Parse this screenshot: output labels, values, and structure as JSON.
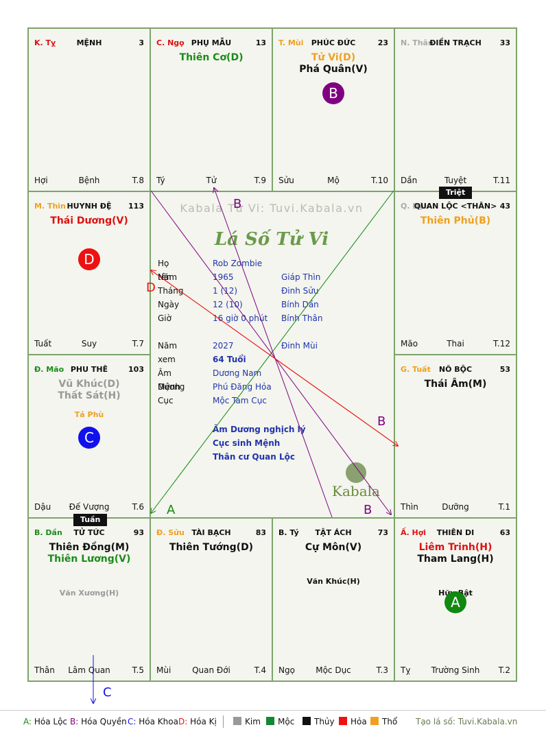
{
  "palaces": [
    {
      "id": "ty",
      "stem": "K. Tỵ",
      "stem_color": "#dd1111",
      "name": "MỆNH",
      "num": "3",
      "stars": [],
      "minor": [],
      "foot": [
        "Hợi",
        "Bệnh",
        "T.8"
      ]
    },
    {
      "id": "ngo",
      "stem": "C. Ngọ",
      "stem_color": "#dd1111",
      "name": "PHỤ MẪU",
      "num": "13",
      "stars": [
        {
          "text": "Thiên Cơ(D)",
          "color": "#1a8c1a"
        }
      ],
      "minor": [],
      "foot": [
        "Tý",
        "Tử",
        "T.9"
      ]
    },
    {
      "id": "mui",
      "stem": "T. Mùi",
      "stem_color": "#f0a020",
      "name": "PHÚC ĐỨC",
      "num": "23",
      "stars": [
        {
          "text": "Tử Vi(D)",
          "color": "#f0a020"
        },
        {
          "text": "Phá Quân(V)",
          "color": "#111111"
        }
      ],
      "minor": [],
      "foot": [
        "Sửu",
        "Mộ",
        "T.10"
      ]
    },
    {
      "id": "than",
      "stem": "N. Thân",
      "stem_color": "#aaaaaa",
      "name": "ĐIỀN TRẠCH",
      "num": "33",
      "stars": [],
      "minor": [],
      "foot": [
        "Dần",
        "Tuyệt",
        "T.11"
      ]
    },
    {
      "id": "thin",
      "stem": "M. Thìn",
      "stem_color": "#f0a020",
      "name": "HUYNH ĐỆ",
      "num": "113",
      "stars": [
        {
          "text": "Thái Dương(V)",
          "color": "#dd1111"
        }
      ],
      "minor": [],
      "foot": [
        "Tuất",
        "Suy",
        "T.7"
      ]
    },
    {
      "id": "dau",
      "stem": "Q. Dậu",
      "stem_color": "#aaaaaa",
      "name": "QUAN LỘC <THÂN>",
      "num": "43",
      "stars": [
        {
          "text": "Thiên Phủ(B)",
          "color": "#f0a020"
        }
      ],
      "minor": [],
      "foot": [
        "Mão",
        "Thai",
        "T.12"
      ]
    },
    {
      "id": "mao",
      "stem": "Đ. Mão",
      "stem_color": "#1a8c1a",
      "name": "PHU THÊ",
      "num": "103",
      "stars": [
        {
          "text": "Vũ Khúc(D)",
          "color": "#999999"
        },
        {
          "text": "Thất Sát(H)",
          "color": "#999999"
        }
      ],
      "minor": [
        {
          "text": "Tả Phù",
          "color": "#f0a020"
        }
      ],
      "foot": [
        "Dậu",
        "Đế Vượng",
        "T.6"
      ]
    },
    {
      "id": "tuat",
      "stem": "G. Tuất",
      "stem_color": "#f0a020",
      "name": "NÔ BỘC",
      "num": "53",
      "stars": [
        {
          "text": "Thái Âm(M)",
          "color": "#111111"
        }
      ],
      "minor": [],
      "foot": [
        "Thìn",
        "Dưỡng",
        "T.1"
      ]
    },
    {
      "id": "dan",
      "stem": "B. Dần",
      "stem_color": "#1a8c1a",
      "name": "TỬ TỨC",
      "num": "93",
      "stars": [
        {
          "text": "Thiên Đồng(M)",
          "color": "#111111"
        },
        {
          "text": "Thiên Lương(V)",
          "color": "#1a8c1a"
        }
      ],
      "minor": [
        {
          "text": "Văn Xương(H)",
          "color": "#999999"
        }
      ],
      "foot": [
        "Thân",
        "Lâm Quan",
        "T.5"
      ]
    },
    {
      "id": "suu",
      "stem": "Đ. Sửu",
      "stem_color": "#f0a020",
      "name": "TÀI BẠCH",
      "num": "83",
      "stars": [
        {
          "text": "Thiên Tướng(D)",
          "color": "#111111"
        }
      ],
      "minor": [],
      "foot": [
        "Mùi",
        "Quan Đới",
        "T.4"
      ]
    },
    {
      "id": "ty2",
      "stem": "B. Tý",
      "stem_color": "#111111",
      "name": "TẬT ÁCH",
      "num": "73",
      "stars": [
        {
          "text": "Cự Môn(V)",
          "color": "#111111"
        }
      ],
      "minor": [
        {
          "text": "Văn Khúc(H)",
          "color": "#111111"
        }
      ],
      "foot": [
        "Ngọ",
        "Mộc Dục",
        "T.3"
      ]
    },
    {
      "id": "hoi",
      "stem": "Ấ. Hợi",
      "stem_color": "#dd1111",
      "name": "THIÊN DI",
      "num": "63",
      "stars": [
        {
          "text": "Liêm Trinh(H)",
          "color": "#dd1111"
        },
        {
          "text": "Tham Lang(H)",
          "color": "#111111"
        }
      ],
      "minor": [
        {
          "text": "Hữu Bật",
          "color": "#111111"
        }
      ],
      "foot": [
        "Tỵ",
        "Trường Sinh",
        "T.2"
      ]
    }
  ],
  "badges": {
    "mui": {
      "letter": "B",
      "color": "#800080"
    },
    "thin": {
      "letter": "D",
      "color": "#ee1111"
    },
    "mao": {
      "letter": "C",
      "color": "#1111ee"
    },
    "hoi": {
      "letter": "A",
      "color": "#118811"
    }
  },
  "tags": {
    "triet": "Triệt",
    "tuan": "Tuần"
  },
  "center": {
    "brand": "Kabala Tử Vi: Tuvi.Kabala.vn",
    "title": "Lá Số Tử Vi",
    "info": [
      {
        "k": "Họ tên",
        "v1": "Rob Zombie",
        "v2": ""
      },
      {
        "k": "Năm",
        "v1": "1965",
        "v2": "Giáp Thìn"
      },
      {
        "k": "Tháng",
        "v1": "1  (12)",
        "v2": "Đinh Sửu"
      },
      {
        "k": "Ngày",
        "v1": "12  (10)",
        "v2": "Bính Dần"
      },
      {
        "k": "Giờ",
        "v1": "16 giờ 0 phút",
        "v2": "Bính Thân"
      },
      {
        "k": "",
        "v1": "",
        "v2": ""
      },
      {
        "k": "Năm xem",
        "v1": "2027",
        "v2": "Đinh Mùi"
      },
      {
        "k": "",
        "v1": "64 Tuổi",
        "v2": ""
      },
      {
        "k": "Âm Dương",
        "v1": "Dương Nam",
        "v2": ""
      },
      {
        "k": "Mệnh",
        "v1": "Phú Đăng Hỏa",
        "v2": ""
      },
      {
        "k": "Cục",
        "v1": "Mộc Tam Cục",
        "v2": ""
      }
    ],
    "notes": [
      "Âm Dương nghịch lý",
      "Cục sinh Mệnh",
      "Thân cư Quan Lộc"
    ],
    "logo": "Kabala"
  },
  "arrow_labels": {
    "a": "A",
    "b": "B",
    "c": "C",
    "d": "D"
  },
  "legend": {
    "transforms": [
      {
        "key": "A:",
        "label": "Hóa Lộc",
        "color": "#118811"
      },
      {
        "key": "B:",
        "label": "Hóa Quyền",
        "color": "#800080"
      },
      {
        "key": "C:",
        "label": "Hóa Khoa",
        "color": "#1111ee"
      },
      {
        "key": "D:",
        "label": "Hóa Kị",
        "color": "#ee1111"
      }
    ],
    "elements": [
      {
        "label": "Kim",
        "color": "#999999"
      },
      {
        "label": "Mộc",
        "color": "#118833"
      },
      {
        "label": "Thủy",
        "color": "#111111"
      },
      {
        "label": "Hỏa",
        "color": "#ee1111"
      },
      {
        "label": "Thổ",
        "color": "#f0a020"
      }
    ],
    "credit": "Tạo lá số: Tuvi.Kabala.vn"
  }
}
